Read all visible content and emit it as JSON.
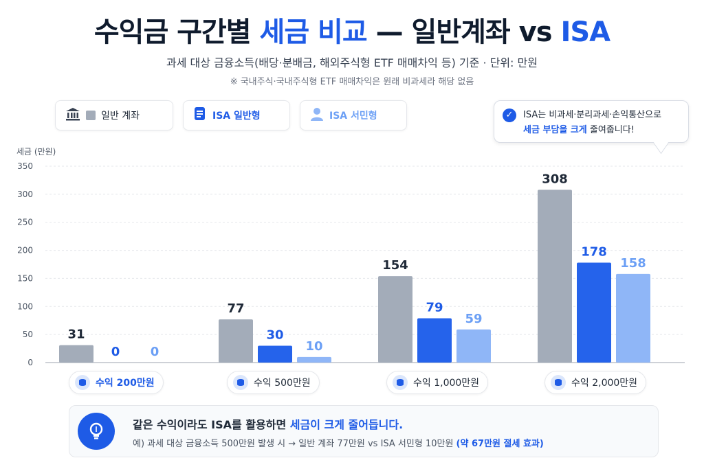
{
  "title": {
    "part1": "수익금 구간별 ",
    "highlight": "세금 비교",
    "part2": " — 일반계좌 vs ",
    "highlight2": "ISA"
  },
  "subtitle": "과세 대상 금융소득(배당·분배금, 해외주식형 ETF 매매차익 등) 기준 · 단위: 만원",
  "note": "※ 국내주식·국내주식형 ETF 매매차익은 원래 비과세라 해당 없음",
  "legend": [
    {
      "label": "일반 계좌",
      "icon": "bank-icon",
      "color": "#a3acb9"
    },
    {
      "label": "ISA 일반형",
      "icon": "document-icon",
      "color": "#2563eb"
    },
    {
      "label": "ISA 서민형",
      "icon": "person-icon",
      "color": "#8fb6f7"
    }
  ],
  "callout": {
    "line1": "ISA는 비과세·분리과세·손익통산으로",
    "bold": "세금 부담을 크게",
    "rest": " 줄여줍니다!",
    "icon": "check-circle-icon"
  },
  "colors": {
    "general": "#a3acb9",
    "isa_general": "#2563eb",
    "isa_low": "#8fb6f7",
    "accent": "#1e5be6"
  },
  "chart_data": {
    "type": "bar",
    "ylabel": "세금 (만원)",
    "ylim": [
      0,
      350
    ],
    "yticks": [
      0,
      50,
      100,
      150,
      200,
      250,
      300,
      350
    ],
    "grid": true,
    "legend_position": "top-left",
    "categories": [
      "수익 200만원",
      "수익 500만원",
      "수익 1,000만원",
      "수익 2,000만원"
    ],
    "series": [
      {
        "name": "일반 계좌",
        "values": [
          31,
          77,
          154,
          308
        ],
        "labels": [
          "31",
          "77",
          "154",
          "308"
        ]
      },
      {
        "name": "ISA 일반형",
        "values": [
          0,
          30,
          79,
          178
        ],
        "labels": [
          "0",
          "30",
          "79",
          "178"
        ]
      },
      {
        "name": "ISA 서민형",
        "values": [
          0,
          10,
          59,
          158
        ],
        "labels": [
          "0",
          "10",
          "59",
          "158"
        ]
      }
    ]
  },
  "summary": {
    "line1_part1": "같은 수익이라도 ISA를 활용하면 ",
    "line1_highlight": "세금이 크게 줄어듭니다.",
    "line2_part1": "예) 과세 대상 금융소득 500만원 발생 시 → 일반 계좌 77만원 vs ISA 서민형 10만원 ",
    "line2_highlight": "(약 67만원 절세 효과)",
    "icon": "lightbulb-icon"
  }
}
